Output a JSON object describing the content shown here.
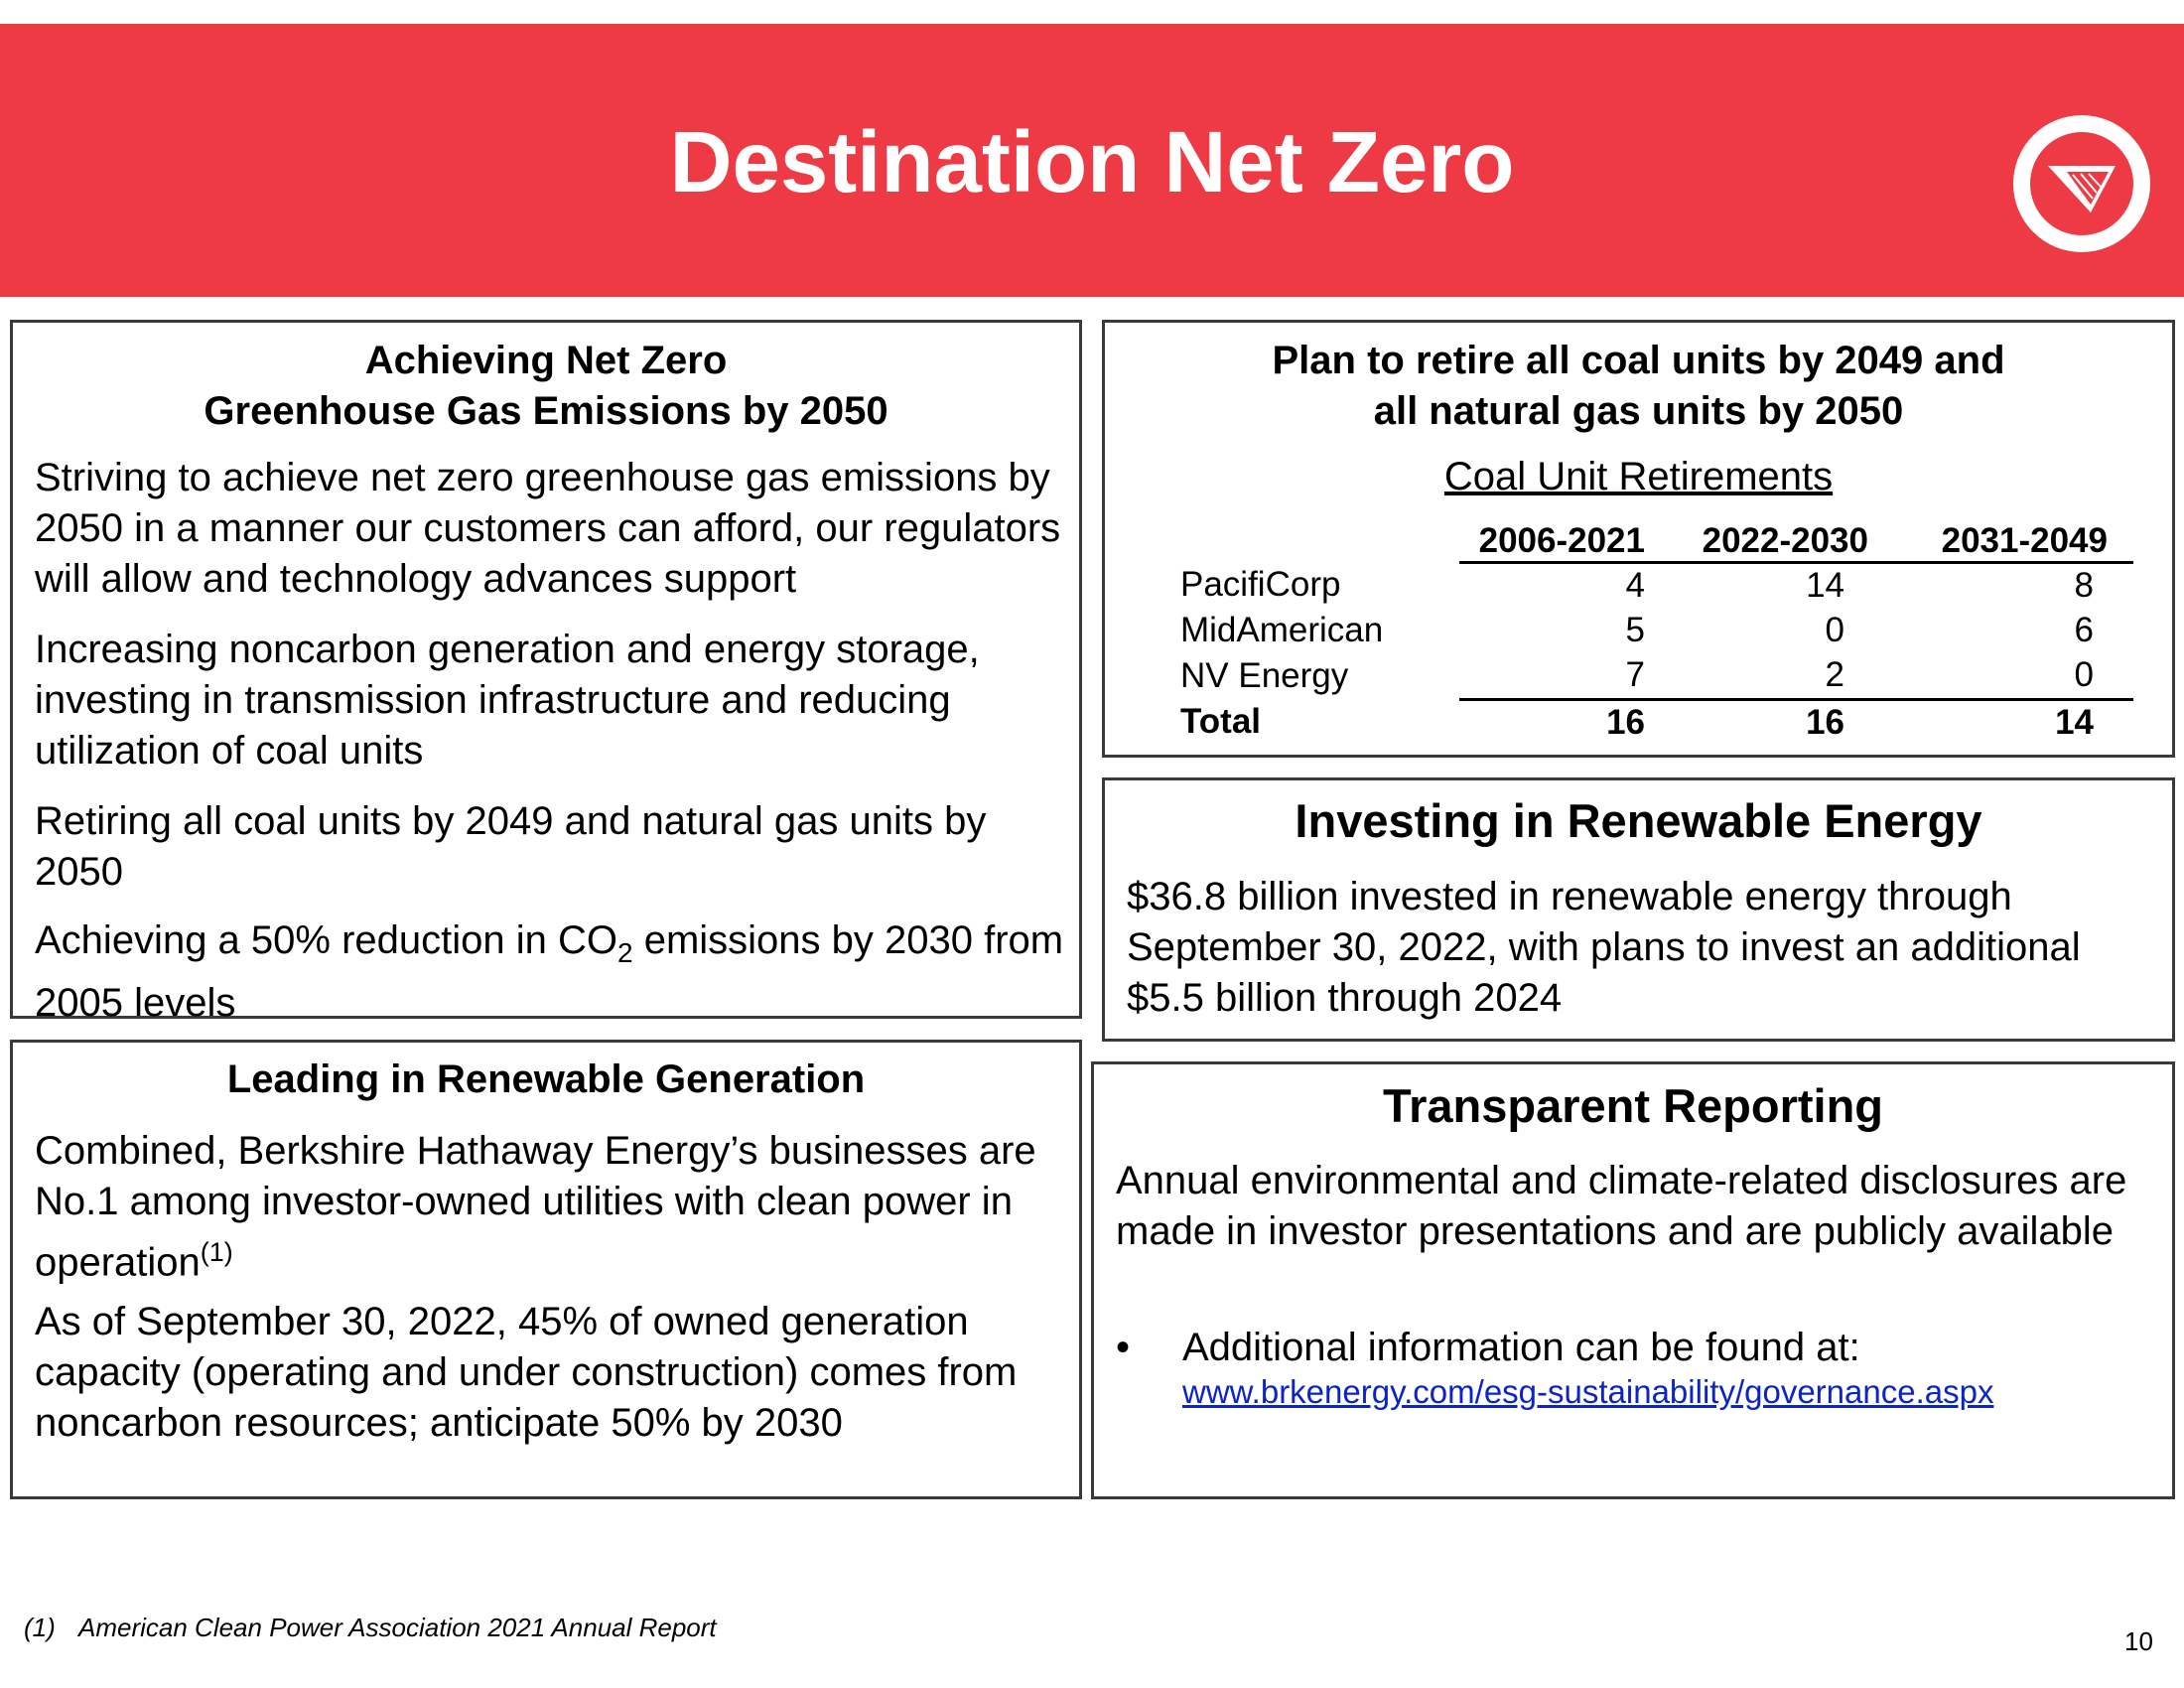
{
  "header": {
    "title": "Destination Net Zero",
    "logo_icon": "company-logo-icon",
    "colors": {
      "banner": "#ee3a44",
      "text": "#ffffff"
    }
  },
  "net_zero": {
    "heading_line1": "Achieving Net Zero",
    "heading_line2": "Greenhouse Gas Emissions by 2050",
    "p1": "Striving to achieve net zero greenhouse gas emissions by 2050 in a manner our customers can afford, our regulators will allow and technology advances support",
    "p2": "Increasing noncarbon generation and energy storage, investing in transmission infrastructure and reducing utilization of coal units",
    "p3": "Retiring all coal units by 2049 and natural gas units by 2050",
    "p4_before": "Achieving a 50% reduction in CO",
    "p4_sub": "2",
    "p4_after": " emissions by 2030 from 2005 levels"
  },
  "coal_plan": {
    "heading_line1": "Plan to retire all coal units by 2049 and",
    "heading_line2": "all natural gas units by 2050",
    "table_title": "Coal Unit Retirements",
    "columns": [
      "2006-2021",
      "2022-2030",
      "2031-2049"
    ],
    "rows": [
      {
        "name": "PacifiCorp",
        "values": [
          "4",
          "14",
          "8"
        ]
      },
      {
        "name": "MidAmerican",
        "values": [
          "5",
          "0",
          "6"
        ]
      },
      {
        "name": "NV Energy",
        "values": [
          "7",
          "2",
          "0"
        ]
      }
    ],
    "total": {
      "name": "Total",
      "values": [
        "16",
        "16",
        "14"
      ]
    }
  },
  "renewable_energy": {
    "heading": "Investing in Renewable Energy",
    "body": "$36.8 billion invested in renewable energy through September 30, 2022, with plans to invest an additional $5.5 billion through 2024"
  },
  "renewable_generation": {
    "heading": "Leading in Renewable Generation",
    "p1": "Combined, Berkshire Hathaway Energy’s businesses are No.1 among investor-owned utilities with clean power in operation",
    "p1_sup": "(1)",
    "p2": "As of September 30, 2022, 45% of owned generation capacity (operating and under construction) comes from noncarbon resources; anticipate 50% by 2030"
  },
  "reporting": {
    "heading": "Transparent Reporting",
    "body": "Annual environmental and climate-related disclosures are made in investor presentations and are publicly available",
    "bullet": "•",
    "bullet_text": "Additional information can be found at:",
    "link": "www.brkenergy.com/esg-sustainability/governance.aspx",
    "link_color": "#0b24c7"
  },
  "footer": {
    "footnote_mark": "(1)",
    "footnote_text": "American Clean Power Association 2021 Annual Report",
    "page_number": "10"
  }
}
